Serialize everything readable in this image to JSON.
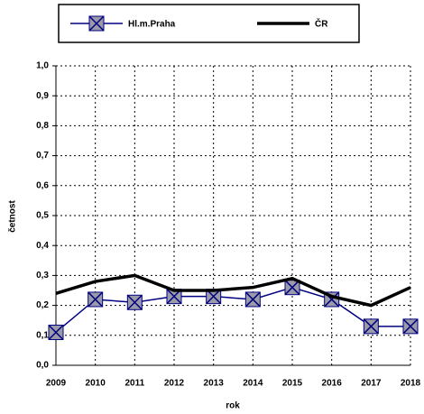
{
  "chart_data": {
    "type": "line",
    "categories": [
      "2009",
      "2010",
      "2011",
      "2012",
      "2013",
      "2014",
      "2015",
      "2016",
      "2017",
      "2018"
    ],
    "series": [
      {
        "name": "Hl.m.Praha",
        "color": "#000080",
        "values": [
          0.11,
          0.22,
          0.21,
          0.23,
          0.23,
          0.22,
          0.26,
          0.22,
          0.13,
          0.13
        ]
      },
      {
        "name": "ČR",
        "color": "#000000",
        "values": [
          0.24,
          0.28,
          0.3,
          0.25,
          0.25,
          0.26,
          0.29,
          0.23,
          0.2,
          0.26
        ]
      }
    ],
    "xlabel": "rok",
    "ylabel": "četnost",
    "ylim": [
      0,
      1
    ],
    "yticks": [
      {
        "value": 0,
        "label": "0,0"
      },
      {
        "value": 0.1,
        "label": "0,1"
      },
      {
        "value": 0.2,
        "label": "0,2"
      },
      {
        "value": 0.3,
        "label": "0,3"
      },
      {
        "value": 0.4,
        "label": "0,4"
      },
      {
        "value": 0.5,
        "label": "0,5"
      },
      {
        "value": 0.6,
        "label": "0,6"
      },
      {
        "value": 0.7,
        "label": "0,7"
      },
      {
        "value": 0.8,
        "label": "0,8"
      },
      {
        "value": 0.9,
        "label": "0,9"
      },
      {
        "value": 1,
        "label": "1,0"
      }
    ],
    "grid": true,
    "legend": "top"
  }
}
